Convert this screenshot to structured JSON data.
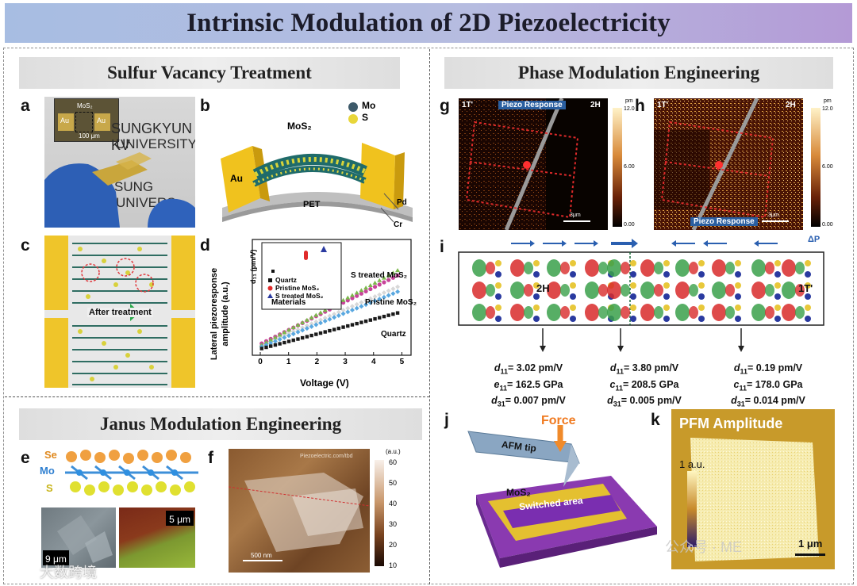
{
  "title": "Intrinsic Modulation of 2D Piezoelectricity",
  "sections": {
    "sulfur": "Sulfur Vacancy Treatment",
    "phase": "Phase Modulation Engineering",
    "janus": "Janus Modulation Engineering"
  },
  "panel_letters": {
    "a": "a",
    "b": "b",
    "c": "c",
    "d": "d",
    "e": "e",
    "f": "f",
    "g": "g",
    "h": "h",
    "i": "i",
    "j": "j",
    "k": "k"
  },
  "panel_a": {
    "mos2": "MoS₂",
    "au_left": "Au",
    "au_right": "Au",
    "scale": "100 μm",
    "photo_text_1": "SUNGKYUN KV",
    "photo_text_2": "UNIVERSITY",
    "photo_text_3": "SUNG",
    "photo_text_4": "UNIVERS"
  },
  "panel_b": {
    "legend_mo": "Mo",
    "legend_s": "S",
    "mos2": "MoS₂",
    "au": "Au",
    "pet": "PET",
    "pd": "Pd",
    "cr": "Cr"
  },
  "panel_c": {
    "caption": "After treatment"
  },
  "panel_d": {
    "ylabel_1": "Lateral piezoresponse",
    "ylabel_2": "amplitude (a.u.)",
    "xlabel": "Voltage (V)",
    "inset_ylabel": "d₁₁ (pm/V)",
    "inset_xlabel": "Materials",
    "legend": [
      "Quartz",
      "Pristine MoS₂",
      "S treated MoS₂"
    ],
    "series_labels": [
      "S treated MoS₂",
      "Pristine MoS₂",
      "Quartz"
    ],
    "xticks": [
      "0",
      "1",
      "2",
      "3",
      "4",
      "5"
    ]
  },
  "panel_e": {
    "se": "Se",
    "mo": "Mo",
    "s": "S",
    "scale_left": "9 μm",
    "scale_right": "5 μm"
  },
  "panel_f": {
    "unit": "(a.u.)",
    "ticks": [
      "60",
      "50",
      "40",
      "30",
      "20",
      "10"
    ],
    "scale": "500 nm",
    "watermark": "Piezoelectric.com/tbd"
  },
  "panel_g": {
    "left": "1T'",
    "center": "Piezo Response",
    "right": "2H",
    "scale": "3μm",
    "cbar_unit": "pm",
    "cbar_top": "12.0",
    "cbar_mid": "6.00",
    "cbar_bot": "0.00"
  },
  "panel_h": {
    "left": "1T'",
    "right": "2H",
    "bottom": "Piezo Response",
    "scale": "3μm",
    "cbar_unit": "pm",
    "cbar_top": "12.0",
    "cbar_mid": "6.00",
    "cbar_bot": "0.00"
  },
  "panel_i": {
    "phase_2h": "2H",
    "phase_1t": "1T'",
    "delta_p": "ΔP"
  },
  "coefficients": [
    {
      "l1": "= 3.02 pm/V",
      "l2": "= 162.5 GPa",
      "l3": "= 0.007 pm/V",
      "s2": "e"
    },
    {
      "l1": "= 3.80 pm/V",
      "l2": "= 208.5 GPa",
      "l3": "= 0.005 pm/V",
      "s2": "c"
    },
    {
      "l1": "= 0.19 pm/V",
      "l2": "= 178.0 GPa",
      "l3": "= 0.014 pm/V",
      "s2": "c"
    }
  ],
  "panel_j": {
    "force": "Force",
    "tip": "AFM tip",
    "mos2": "MoS₂",
    "switched": "Switched area",
    "pt": "Pt"
  },
  "panel_k": {
    "title": "PFM Amplitude",
    "cbar": "1 a.u.",
    "cbar_zero": "0",
    "scale": "1 μm"
  },
  "watermark_left": "大数跨境",
  "watermark_right": "公众号 · ME"
}
